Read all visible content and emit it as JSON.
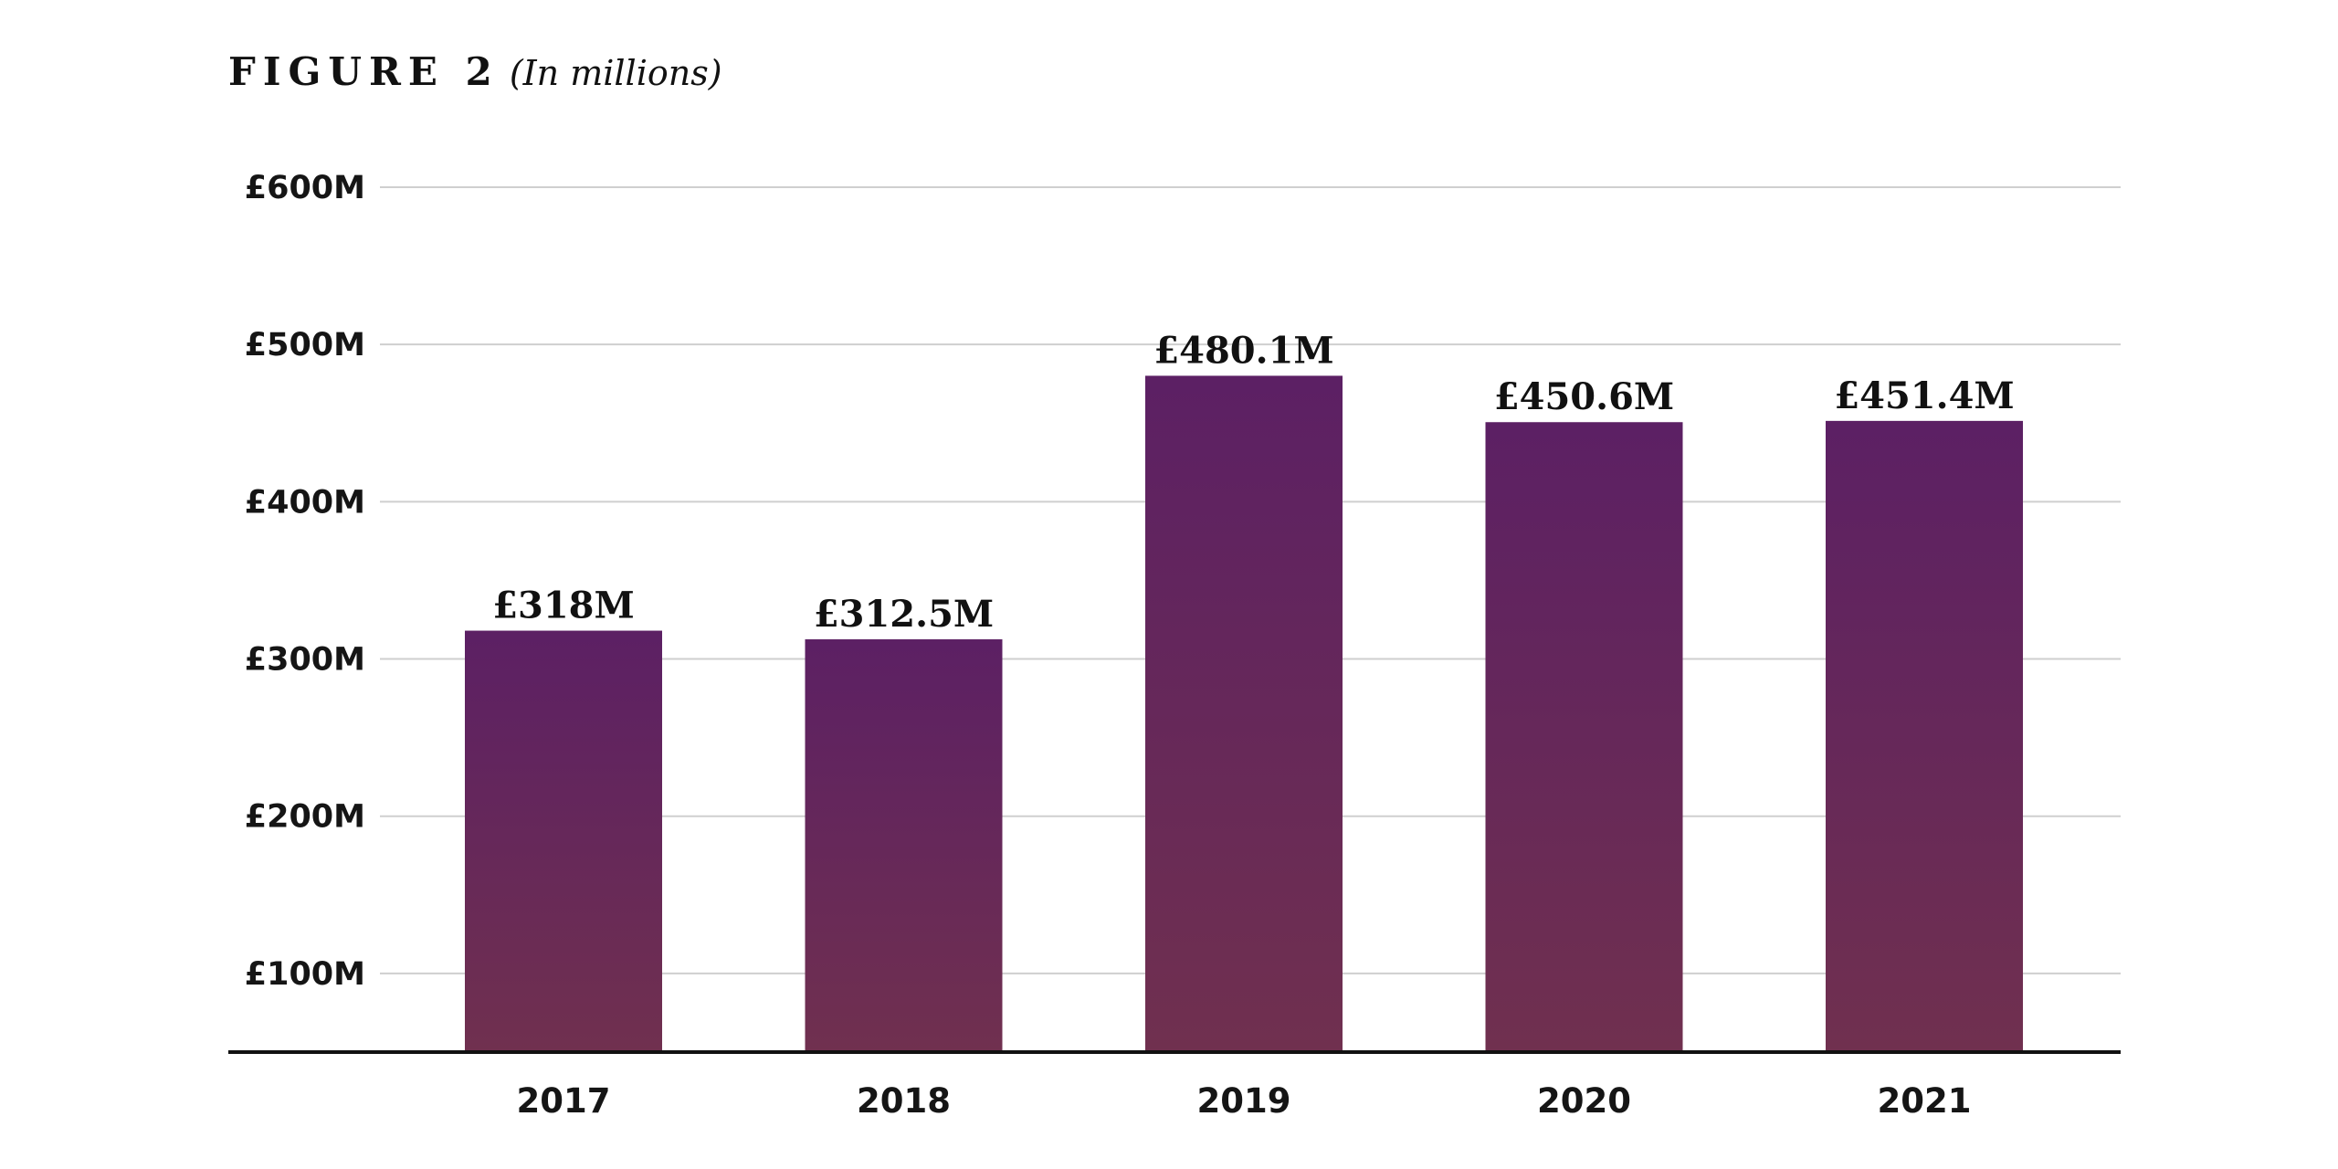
{
  "figure": {
    "label": "FIGURE 2",
    "subtitle": "(In millions)"
  },
  "colors": {
    "bar_top": "#5c2064",
    "bar_bottom": "#70304f",
    "grid": "#cfcfcf",
    "axis": "#111111"
  },
  "chart_data": {
    "type": "bar",
    "title": "FIGURE 2",
    "subtitle": "(In millions)",
    "categories": [
      "2017",
      "2018",
      "2019",
      "2020",
      "2021"
    ],
    "values": [
      318,
      312.5,
      480.1,
      450.6,
      451.4
    ],
    "value_labels": [
      "£318M",
      "£312.5M",
      "£480.1M",
      "£450.6M",
      "£451.4M"
    ],
    "ylim": [
      50,
      600
    ],
    "yticks": [
      100,
      200,
      300,
      400,
      500,
      600
    ],
    "ytick_labels": [
      "£100M",
      "£200M",
      "£300M",
      "£400M",
      "£500M",
      "£600M"
    ],
    "grid": true,
    "legend": "none"
  }
}
